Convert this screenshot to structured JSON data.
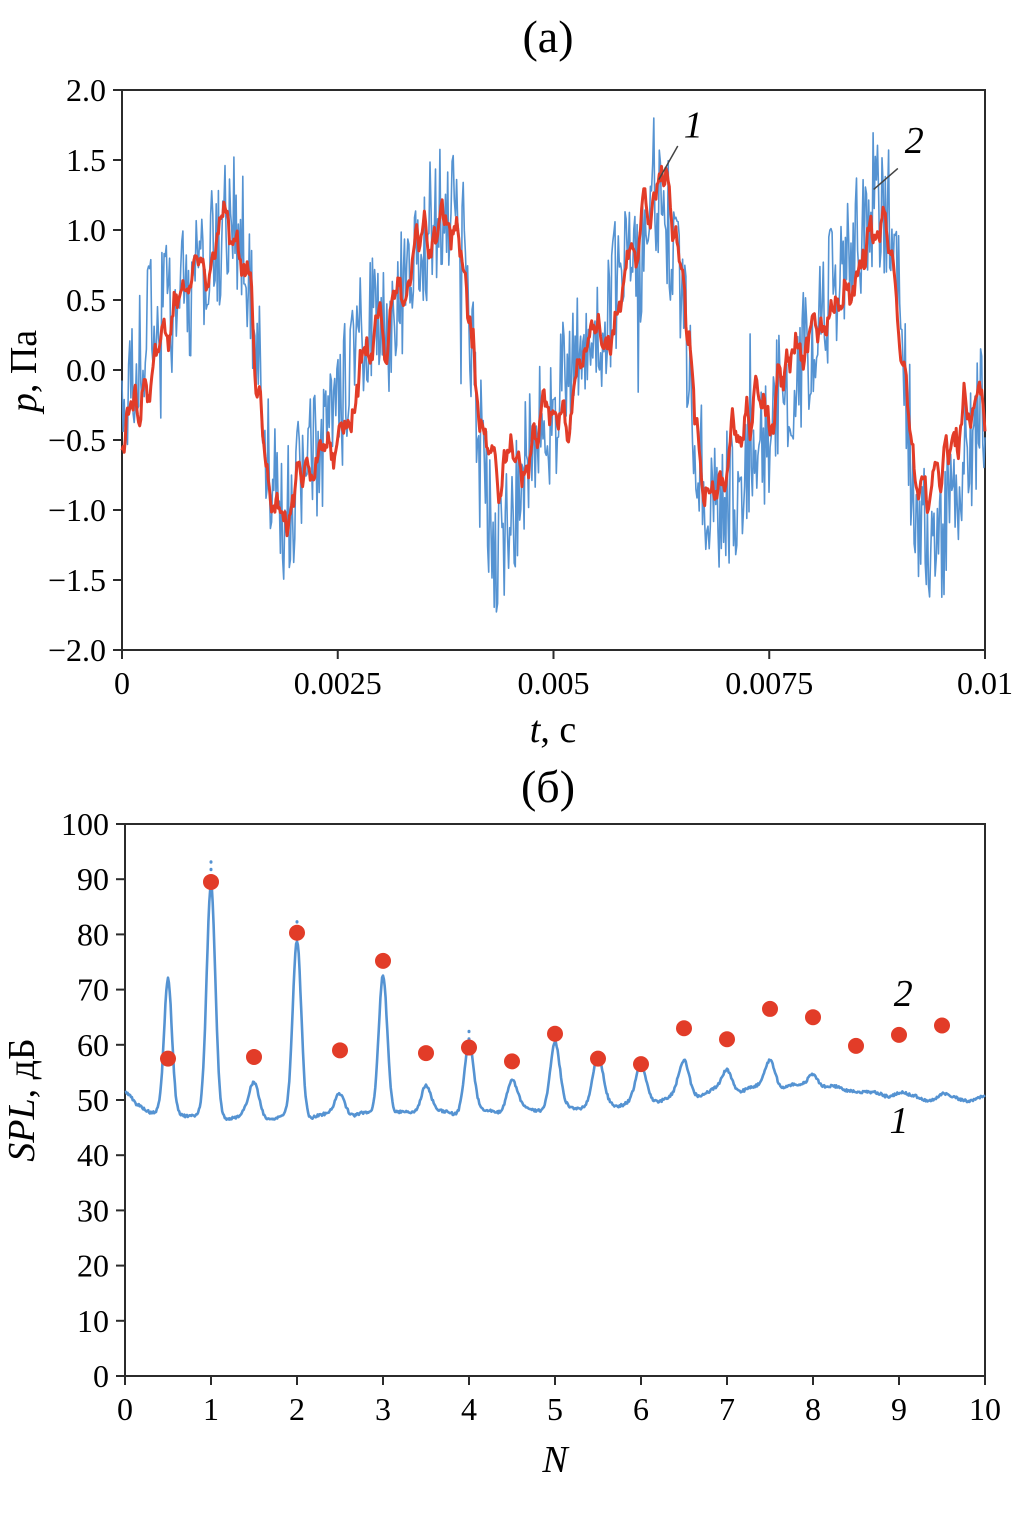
{
  "figure": {
    "background": "#ffffff"
  },
  "colors": {
    "curve1_blue": "#5593D2",
    "curve2_red": "#E23C28",
    "axis": "#2B2B2B",
    "leader": "#444444"
  },
  "chart_data": [
    {
      "id": "panel-a",
      "type": "line",
      "title": "(а)",
      "xlabel": {
        "italic": "t",
        "rest": ", с"
      },
      "ylabel": {
        "italic": "p",
        "rest": ", Па"
      },
      "xlim": [
        0,
        0.01
      ],
      "ylim": [
        -2.0,
        2.0
      ],
      "grid": false,
      "legend": "none",
      "xticks": [
        0,
        0.0025,
        0.005,
        0.0075,
        0.01
      ],
      "xtick_labels": [
        "0",
        "0.0025",
        "0.005",
        "0.0075",
        "0.01"
      ],
      "yticks": [
        2.0,
        1.5,
        1.0,
        0.5,
        0.0,
        -0.5,
        -1.0,
        -1.5,
        -2.0
      ],
      "ytick_labels": [
        "2.0",
        "1.5",
        "1.0",
        "0.5",
        "0.0",
        "−0.5",
        "−1.0",
        "−1.5",
        "−2.0"
      ],
      "series_meta": [
        {
          "name": "1",
          "color_key": "blue",
          "description": "raw pressure signal, 4 periods, peaks ≈ ±1.7 Па"
        },
        {
          "name": "2",
          "color_key": "red",
          "description": "filtered pressure signal, peaks ≈ ±1.2 Па"
        }
      ],
      "waveform": {
        "period_s": 0.0025,
        "samples": 780,
        "cycle_shape": [
          [
            0,
            -0.35
          ],
          [
            0.06,
            -0.12
          ],
          [
            0.13,
            0.12
          ],
          [
            0.21,
            0.35
          ],
          [
            0.29,
            0.58
          ],
          [
            0.37,
            0.78
          ],
          [
            0.43,
            0.95
          ],
          [
            0.5,
            1.18
          ],
          [
            0.545,
            1.08
          ],
          [
            0.585,
            0.72
          ],
          [
            0.625,
            0.15
          ],
          [
            0.66,
            -0.45
          ],
          [
            0.7,
            -0.85
          ],
          [
            0.735,
            -1.0
          ],
          [
            0.78,
            -0.92
          ],
          [
            0.85,
            -0.68
          ],
          [
            0.92,
            -0.5
          ],
          [
            1,
            -0.35
          ]
        ],
        "series": [
          {
            "name": "1",
            "color_key": "blue",
            "seed": 20,
            "base_scale": 1.04,
            "hf": 0.5,
            "smooth": 0,
            "slow": 0.26,
            "slow_points": 26,
            "spike_prob": 0.055,
            "spike_amp": 0.55,
            "width": 1.6
          },
          {
            "name": "2",
            "color_key": "red",
            "seed": 77,
            "base_scale": 1.0,
            "hf": 0.45,
            "smooth": 2,
            "slow": 0.18,
            "slow_points": 22,
            "spike_prob": 0,
            "spike_amp": 0,
            "width": 3
          }
        ]
      },
      "annotations": [
        {
          "text": "1",
          "x": 0.00662,
          "y": 1.66,
          "line": [
            [
              0.00644,
              1.6
            ],
            [
              0.00622,
              1.36
            ]
          ]
        },
        {
          "text": "2",
          "x": 0.00918,
          "y": 1.55,
          "line": [
            [
              0.00899,
              1.44
            ],
            [
              0.00871,
              1.29
            ]
          ]
        }
      ]
    },
    {
      "id": "panel-b",
      "type": "line+scatter",
      "title": "(б)",
      "xlabel": {
        "italic": "N",
        "rest": ""
      },
      "ylabel": {
        "italic": "SPL",
        "rest": ", дБ"
      },
      "xlim": [
        0,
        10
      ],
      "ylim": [
        0,
        100
      ],
      "grid": false,
      "legend": "none",
      "xticks": [
        0,
        1,
        2,
        3,
        4,
        5,
        6,
        7,
        8,
        9,
        10
      ],
      "xtick_labels": [
        "0",
        "1",
        "2",
        "3",
        "4",
        "5",
        "6",
        "7",
        "8",
        "9",
        "10"
      ],
      "yticks": [
        0,
        10,
        20,
        30,
        40,
        50,
        60,
        70,
        80,
        90,
        100
      ],
      "ytick_labels": [
        "0",
        "10",
        "20",
        "30",
        "40",
        "50",
        "60",
        "70",
        "80",
        "90",
        "100"
      ],
      "series": [
        {
          "name": "1",
          "type": "line",
          "color_key": "blue",
          "width": 2.6,
          "seed": 5,
          "baseline": [
            [
              0,
              51
            ],
            [
              0.15,
              49
            ],
            [
              0.35,
              48
            ],
            [
              0.7,
              47.5
            ],
            [
              1.2,
              47
            ],
            [
              1.8,
              46.8
            ],
            [
              2.3,
              47
            ],
            [
              3.2,
              47.5
            ],
            [
              3.8,
              47.5
            ],
            [
              4.4,
              48
            ],
            [
              4.9,
              48.5
            ],
            [
              5.4,
              49
            ],
            [
              5.9,
              49.5
            ],
            [
              6.4,
              50.5
            ],
            [
              6.9,
              51.5
            ],
            [
              7.4,
              52
            ],
            [
              7.9,
              52.5
            ],
            [
              8.3,
              52
            ],
            [
              8.7,
              51
            ],
            [
              9.2,
              50.3
            ],
            [
              9.6,
              50
            ],
            [
              10,
              50.5
            ]
          ],
          "peaks": [
            [
              0.5,
              71.5,
              0.045
            ],
            [
              1,
              88.5,
              0.05
            ],
            [
              1.5,
              53,
              0.06
            ],
            [
              2,
              79,
              0.05
            ],
            [
              2.5,
              51.5,
              0.06
            ],
            [
              3,
              73,
              0.05
            ],
            [
              3.5,
              53,
              0.06
            ],
            [
              4,
              60.5,
              0.055
            ],
            [
              4.5,
              53.5,
              0.06
            ],
            [
              5,
              60,
              0.055
            ],
            [
              5.5,
              57.5,
              0.06
            ],
            [
              6,
              56,
              0.06
            ],
            [
              6.5,
              57,
              0.06
            ],
            [
              7,
              55.5,
              0.06
            ],
            [
              7.5,
              57.5,
              0.06
            ],
            [
              8,
              55,
              0.06
            ],
            [
              8.5,
              52,
              0.07
            ],
            [
              9,
              51.5,
              0.07
            ],
            [
              9.5,
              51,
              0.07
            ]
          ],
          "ripple_amp": 0.45,
          "ripple_freq": 2.2,
          "noise": 0.25
        },
        {
          "name": "2",
          "type": "scatter",
          "color_key": "red",
          "radius": 8,
          "points": [
            [
              0.5,
              57.5
            ],
            [
              1,
              89.5
            ],
            [
              1.5,
              57.8
            ],
            [
              2,
              80.3
            ],
            [
              2.5,
              59
            ],
            [
              3,
              75.2
            ],
            [
              3.5,
              58.5
            ],
            [
              4,
              59.5
            ],
            [
              4.5,
              57
            ],
            [
              5,
              62
            ],
            [
              5.5,
              57.5
            ],
            [
              6,
              56.5
            ],
            [
              6.5,
              63
            ],
            [
              7,
              61
            ],
            [
              7.5,
              66.5
            ],
            [
              8,
              65
            ],
            [
              8.5,
              59.8
            ],
            [
              9,
              61.8
            ],
            [
              9.5,
              63.5
            ]
          ]
        }
      ],
      "dotted_tops": [
        [
          1,
          89,
          94
        ],
        [
          2,
          79.5,
          83.5
        ],
        [
          4,
          61,
          63.2
        ]
      ],
      "annotations": [
        {
          "text": "2",
          "x": 9.05,
          "y": 67.0
        },
        {
          "text": "1",
          "x": 9.0,
          "y": 44.0
        }
      ]
    }
  ]
}
